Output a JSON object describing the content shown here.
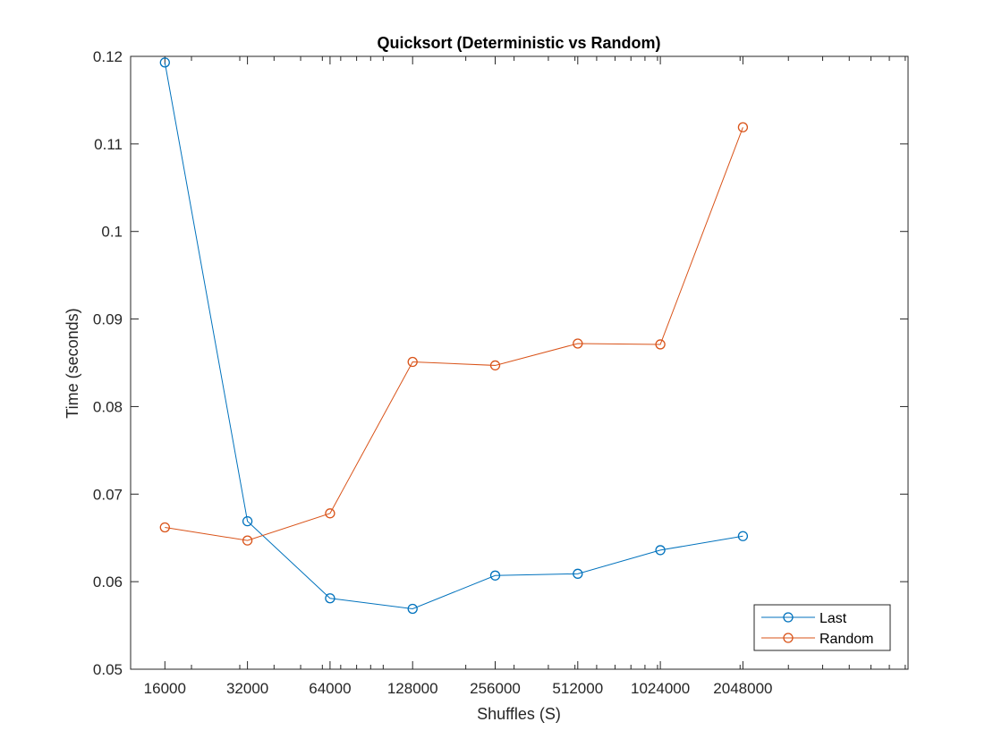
{
  "chart_data": {
    "type": "line",
    "title": "Quicksort (Deterministic vs Random)",
    "xlabel": "Shuffles (S)",
    "ylabel": "Time (seconds)",
    "x_scale": "log2",
    "x": [
      16000,
      32000,
      64000,
      128000,
      256000,
      512000,
      1024000,
      2048000
    ],
    "x_tick_labels": [
      "16000",
      "32000",
      "64000",
      "128000",
      "256000",
      "512000",
      "1024000",
      "2048000"
    ],
    "xlim": [
      12000,
      8192000
    ],
    "ylim": [
      0.05,
      0.12
    ],
    "y_ticks": [
      0.05,
      0.06,
      0.07,
      0.08,
      0.09,
      0.1,
      0.11,
      0.12
    ],
    "y_tick_labels": [
      "0.05",
      "0.06",
      "0.07",
      "0.08",
      "0.09",
      "0.1",
      "0.11",
      "0.12"
    ],
    "grid": false,
    "marker": "circle",
    "legend_location": "bottom-right",
    "series": [
      {
        "name": "Last",
        "color": "#0072BD",
        "values": [
          0.1193,
          0.0669,
          0.0581,
          0.0569,
          0.0607,
          0.0609,
          0.0636,
          0.0652
        ]
      },
      {
        "name": "Random",
        "color": "#D95319",
        "values": [
          0.0662,
          0.0647,
          0.0678,
          0.0851,
          0.0847,
          0.0872,
          0.0871,
          0.1119
        ]
      }
    ]
  }
}
